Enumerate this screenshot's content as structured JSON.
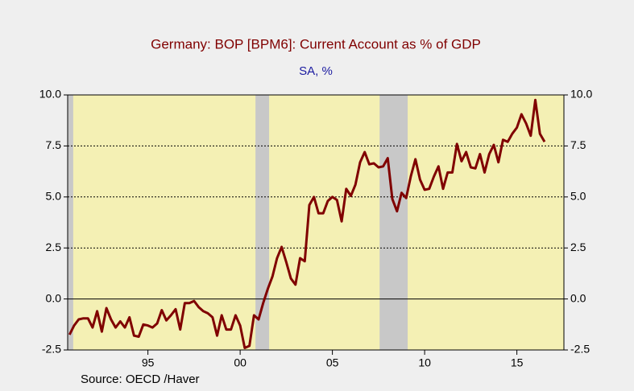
{
  "chart_data": {
    "type": "line",
    "title": "Germany: BOP [BPM6]: Current Account as % of GDP",
    "subtitle": "SA, %",
    "source": "Source:  OECD /Haver",
    "x": [
      1991.25,
      1991.5,
      1991.75,
      1992,
      1992.25,
      1992.5,
      1992.75,
      1993,
      1993.25,
      1993.5,
      1993.75,
      1994,
      1994.25,
      1994.5,
      1994.75,
      1995,
      1995.25,
      1995.5,
      1995.75,
      1996,
      1996.25,
      1996.5,
      1996.75,
      1997,
      1997.25,
      1997.5,
      1997.75,
      1998,
      1998.25,
      1998.5,
      1998.75,
      1999,
      1999.25,
      1999.5,
      1999.75,
      2000,
      2000.25,
      2000.5,
      2000.75,
      2001,
      2001.25,
      2001.5,
      2001.75,
      2002,
      2002.25,
      2002.5,
      2002.75,
      2003,
      2003.25,
      2003.5,
      2003.75,
      2004,
      2004.25,
      2004.5,
      2004.75,
      2005,
      2005.25,
      2005.5,
      2005.75,
      2006,
      2006.25,
      2006.5,
      2006.75,
      2007,
      2007.25,
      2007.5,
      2007.75,
      2008,
      2008.25,
      2008.5,
      2008.75,
      2009,
      2009.25,
      2009.5,
      2009.75,
      2010,
      2010.25,
      2010.5,
      2010.75,
      2011,
      2011.25,
      2011.5,
      2011.75,
      2012,
      2012.25,
      2012.5,
      2012.75,
      2013,
      2013.25,
      2013.5,
      2013.75,
      2014,
      2014.25,
      2014.5,
      2014.75,
      2015,
      2015.25,
      2015.5,
      2015.75,
      2016,
      2016.25,
      2016.5,
      2016.75,
      2017
    ],
    "series": [
      {
        "name": "Current Account as % of GDP",
        "color": "#800000",
        "values": [
          -1.75,
          -1.3,
          -1.0,
          -0.95,
          -0.95,
          -1.4,
          -0.6,
          -1.6,
          -0.45,
          -1.0,
          -1.4,
          -1.1,
          -1.4,
          -0.9,
          -1.8,
          -1.85,
          -1.25,
          -1.3,
          -1.4,
          -1.2,
          -0.55,
          -1.05,
          -0.8,
          -0.5,
          -1.5,
          -0.2,
          -0.2,
          -0.1,
          -0.4,
          -0.6,
          -0.7,
          -0.9,
          -1.8,
          -0.8,
          -1.5,
          -1.5,
          -0.8,
          -1.3,
          -2.4,
          -2.3,
          -0.8,
          -1.0,
          -0.2,
          0.5,
          1.1,
          2.0,
          2.55,
          1.8,
          1.0,
          0.7,
          2.0,
          1.85,
          4.6,
          5.0,
          4.2,
          4.2,
          4.8,
          5.0,
          4.85,
          3.8,
          5.4,
          5.05,
          5.6,
          6.7,
          7.2,
          6.6,
          6.65,
          6.45,
          6.5,
          6.9,
          4.9,
          4.3,
          5.2,
          4.95,
          6.0,
          6.85,
          5.85,
          5.35,
          5.4,
          6.0,
          6.5,
          5.4,
          6.2,
          6.2,
          7.6,
          6.75,
          7.2,
          6.45,
          6.4,
          7.1,
          6.2,
          7.1,
          7.55,
          6.7,
          7.8,
          7.7,
          8.1,
          8.4,
          9.05,
          8.6,
          8.0,
          9.75,
          8.1,
          7.7
        ]
      }
    ],
    "shading": [
      [
        1991.15,
        1991.45
      ],
      [
        2001.33,
        2002.07
      ],
      [
        2008.06,
        2009.58
      ]
    ],
    "shading_color": "#c8c8c8",
    "plot_background": "#f4f0b4",
    "xlim": [
      1991.15,
      2018.05
    ],
    "xticks": [
      {
        "value": 1995.5,
        "label": "95"
      },
      {
        "value": 2000.5,
        "label": "00"
      },
      {
        "value": 2005.5,
        "label": "05"
      },
      {
        "value": 2010.5,
        "label": "10"
      },
      {
        "value": 2015.5,
        "label": "15"
      }
    ],
    "ylim": [
      -2.5,
      10
    ],
    "yticks": [
      {
        "value": 10,
        "label": "10.0"
      },
      {
        "value": 7.5,
        "label": "7.5"
      },
      {
        "value": 5,
        "label": "5.0"
      },
      {
        "value": 2.5,
        "label": "2.5"
      },
      {
        "value": 0,
        "label": "0.0"
      },
      {
        "value": -2.5,
        "label": "-2.5"
      }
    ],
    "y2lim": [
      -2.5,
      10
    ],
    "y2ticks": [
      {
        "value": 10,
        "label": "10.0"
      },
      {
        "value": 7.5,
        "label": "7.5"
      },
      {
        "value": 5,
        "label": "5.0"
      },
      {
        "value": 2.5,
        "label": "2.5"
      },
      {
        "value": 0,
        "label": "0.0"
      },
      {
        "value": -2.5,
        "label": "-2.5"
      }
    ],
    "grid": true
  }
}
